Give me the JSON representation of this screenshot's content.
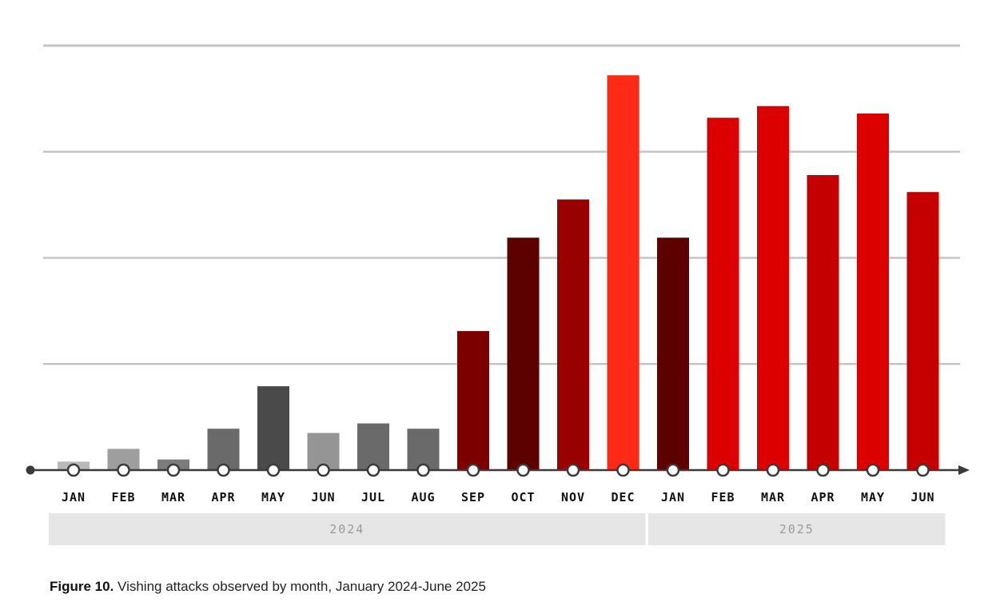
{
  "chart_data": {
    "type": "bar",
    "categories": [
      "JAN",
      "FEB",
      "MAR",
      "APR",
      "MAY",
      "JUN",
      "JUL",
      "AUG",
      "SEP",
      "OCT",
      "NOV",
      "DEC",
      "JAN",
      "FEB",
      "MAR",
      "APR",
      "MAY",
      "JUN"
    ],
    "values": [
      0.08,
      0.2,
      0.1,
      0.39,
      0.79,
      0.35,
      0.44,
      0.39,
      1.31,
      2.19,
      2.55,
      3.72,
      2.19,
      3.32,
      3.43,
      2.78,
      3.36,
      2.62
    ],
    "colors": [
      "#b9b9b9",
      "#9e9e9e",
      "#7c7c7c",
      "#6a6a6a",
      "#4a4a4a",
      "#959595",
      "#6a6a6a",
      "#6a6a6a",
      "#7d0000",
      "#5c0000",
      "#990000",
      "#ff2a16",
      "#5c0000",
      "#dd0000",
      "#dd0000",
      "#c40000",
      "#dd0000",
      "#c40000"
    ],
    "ylim": [
      0,
      4
    ],
    "gridlines": [
      1,
      2,
      3,
      4
    ],
    "years": [
      {
        "label": "2024",
        "start": 0,
        "end": 11
      },
      {
        "label": "2025",
        "start": 12,
        "end": 17
      }
    ],
    "xlabel": "",
    "ylabel": ""
  },
  "caption": {
    "bold": "Figure 10.",
    "text": " Vishing attacks observed by month, January 2024-June 2025"
  }
}
